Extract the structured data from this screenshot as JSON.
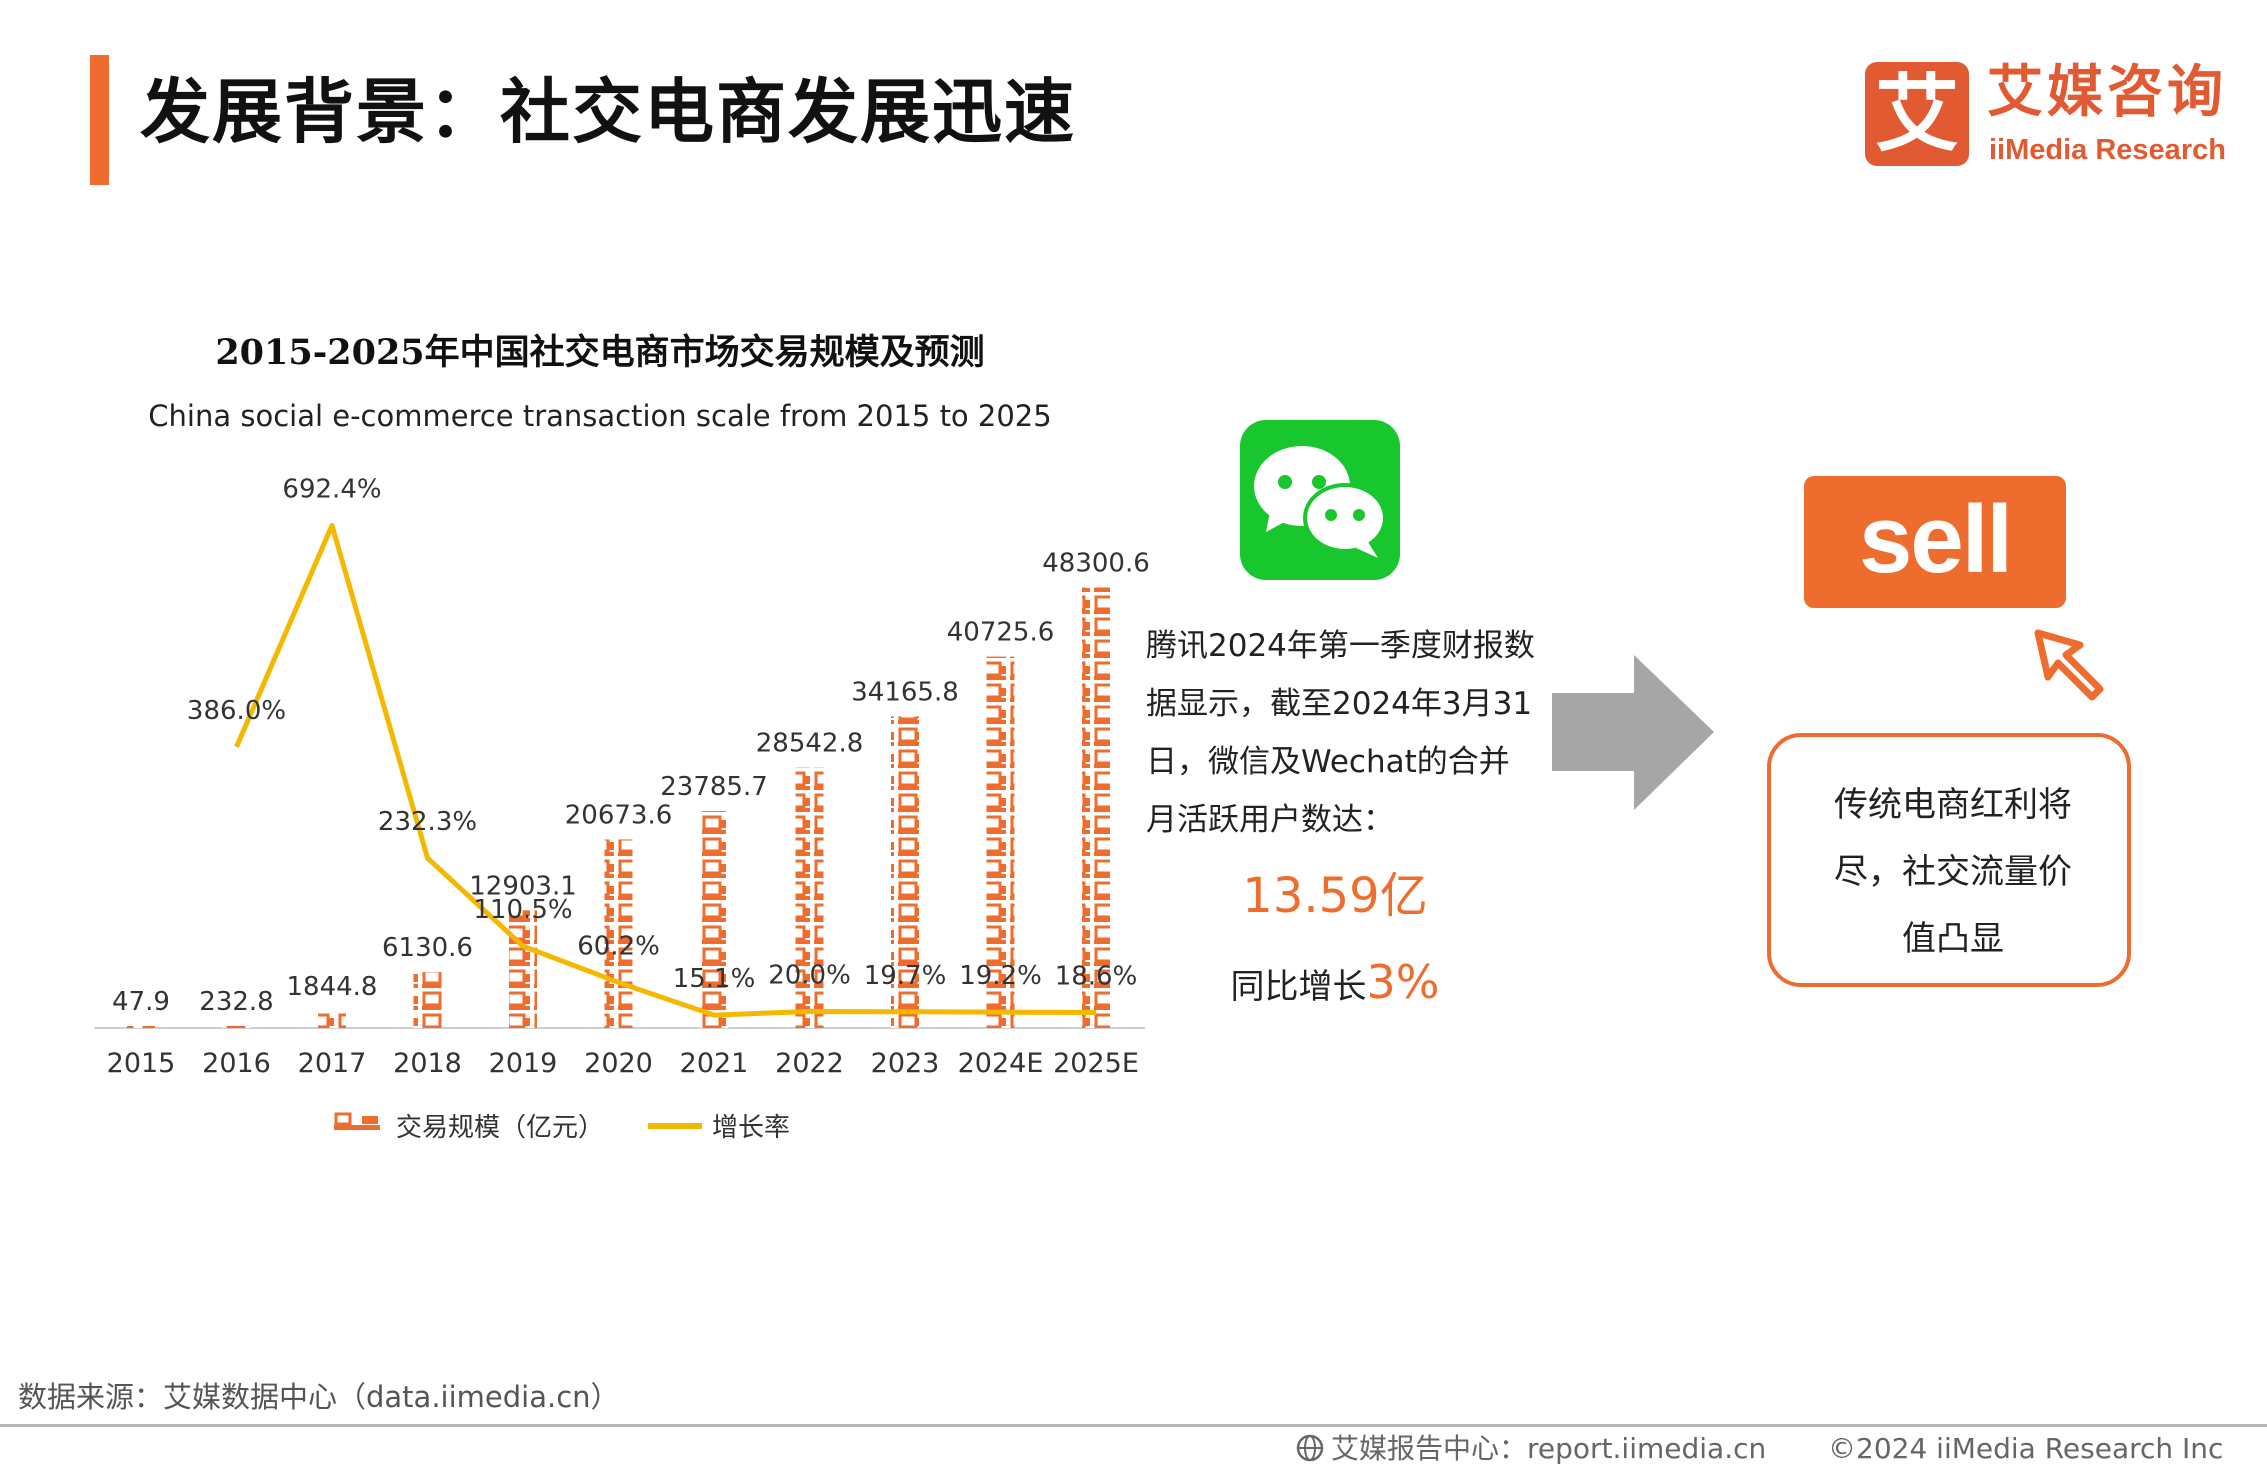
{
  "header": {
    "title": "发展背景：社交电商发展迅速",
    "logo_mark": "艾",
    "logo_cn": "艾媒咨询",
    "logo_en": "iiMedia Research"
  },
  "chart_data": {
    "type": "bar",
    "title": "2015-2025年中国社交电商市场交易规模及预测",
    "subtitle": "China social e-commerce transaction scale from 2015 to 2025",
    "categories": [
      "2015",
      "2016",
      "2017",
      "2018",
      "2019",
      "2020",
      "2021",
      "2022",
      "2023",
      "2024E",
      "2025E"
    ],
    "series": [
      {
        "name": "交易规模（亿元）",
        "type": "bar",
        "values": [
          47.9,
          232.8,
          1844.8,
          6130.6,
          12903.1,
          20673.6,
          23785.7,
          28542.8,
          34165.8,
          40725.6,
          48300.6
        ],
        "labels": [
          "47.9",
          "232.8",
          "1844.8",
          "6130.6",
          "12903.1",
          "20673.6",
          "23785.7",
          "28542.8",
          "34165.8",
          "40725.6",
          "48300.6"
        ],
        "color": "#ee6d2e"
      },
      {
        "name": "增长率",
        "type": "line",
        "values": [
          null,
          386.0,
          692.4,
          232.3,
          110.5,
          60.2,
          15.1,
          20.0,
          19.7,
          19.2,
          18.6
        ],
        "labels": [
          "",
          "386.0%",
          "692.4%",
          "232.3%",
          "110.5%",
          "60.2%",
          "15.1%",
          "20.0%",
          "19.7%",
          "19.2%",
          "18.6%"
        ],
        "color": "#f5b800"
      }
    ],
    "ylim_bar": [
      0,
      50000
    ],
    "legend_position": "bottom",
    "grid": false
  },
  "wechat": {
    "icon": "wechat-icon",
    "text": "腾讯2024年第一季度财报数据显示，截至2024年3月31日，微信及Wechat的合并月活跃用户数达：",
    "value": "13.59亿",
    "growth_prefix": "同比增长",
    "growth_value": "3%"
  },
  "arrow_icon": "right-arrow-icon",
  "sell": {
    "label": "sell",
    "cursor_icon": "click-cursor-icon"
  },
  "callout": {
    "text": "传统电商红利将尽，社交流量价值凸显"
  },
  "footer": {
    "source": "数据来源：艾媒数据中心（data.iimedia.cn）",
    "report": "艾媒报告中心：report.iimedia.cn",
    "copyright": "©2024  iiMedia Research Inc"
  },
  "colors": {
    "accent": "#ee6d2e",
    "line": "#f5b800",
    "wechat": "#18c72d",
    "arrow": "#a6a6a6"
  }
}
